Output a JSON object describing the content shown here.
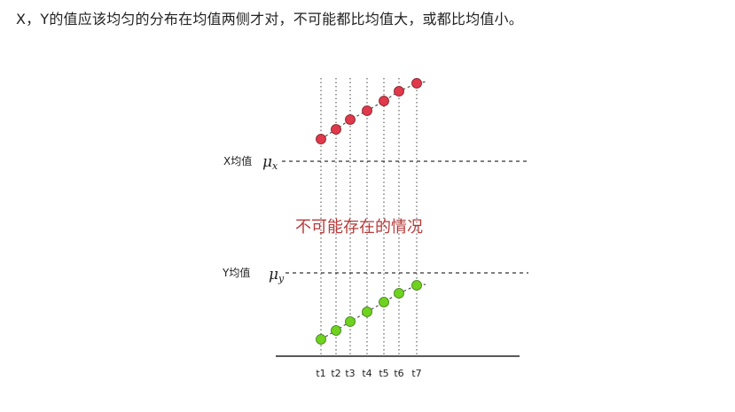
{
  "caption": "X，Y的值应该均匀的分布在均值两侧才对，不可能都比均值大，或都比均值小。",
  "diagram": {
    "x_mean_label": "X均值",
    "x_mean_symbol": "μ",
    "x_mean_subscript": "x",
    "y_mean_label": "Y均值",
    "y_mean_symbol": "μ",
    "y_mean_subscript": "y",
    "center_text": "不可能存在的情况",
    "time_labels": [
      "t1",
      "t2",
      "t3",
      "t4",
      "t5",
      "t6",
      "t7"
    ],
    "colors": {
      "x_points": "#e0394b",
      "y_points": "#6ed21f",
      "center_text": "#b83a3a"
    }
  }
}
